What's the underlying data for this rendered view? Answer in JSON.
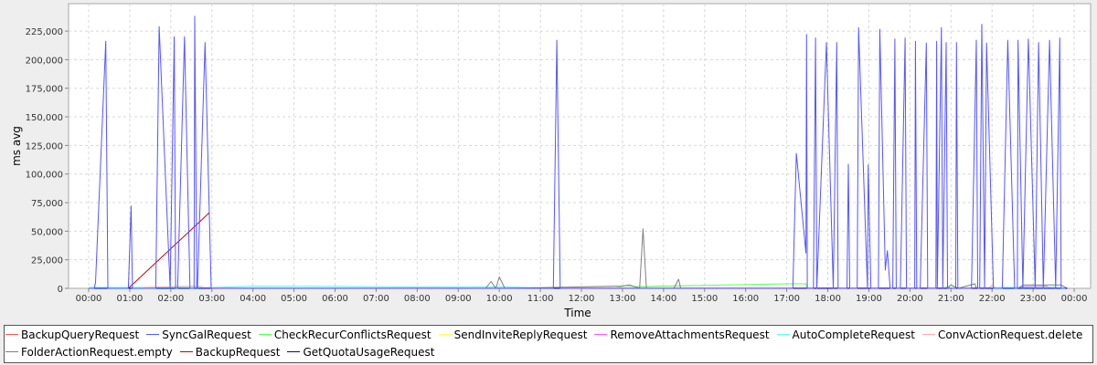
{
  "chart_data": {
    "type": "line",
    "xlabel": "Time",
    "ylabel": "ms avg",
    "x_range_hours": [
      -0.49,
      24.4
    ],
    "ylim": [
      0,
      249000
    ],
    "grid": true,
    "legend": "bottom",
    "x_ticks": [
      "00:00",
      "01:00",
      "02:00",
      "03:00",
      "04:00",
      "05:00",
      "06:00",
      "07:00",
      "08:00",
      "09:00",
      "10:00",
      "11:00",
      "12:00",
      "13:00",
      "14:00",
      "15:00",
      "16:00",
      "17:00",
      "18:00",
      "19:00",
      "20:00",
      "21:00",
      "22:00",
      "23:00",
      "00:00"
    ],
    "y_ticks": [
      0,
      25000,
      50000,
      75000,
      100000,
      125000,
      150000,
      175000,
      200000,
      225000
    ],
    "y_tick_labels": [
      "0",
      "25,000",
      "50,000",
      "75,000",
      "100,000",
      "125,000",
      "150,000",
      "175,000",
      "200,000",
      "225,000"
    ],
    "series": [
      {
        "name": "BackupQueryRequest",
        "color": "#ff5555",
        "points": [
          [
            "00:00",
            0
          ],
          [
            "23:50",
            0
          ]
        ]
      },
      {
        "name": "SyncGalRequest",
        "color": "#5555ff",
        "points": [
          [
            "00:00",
            0
          ],
          [
            "00:08",
            0
          ],
          [
            "00:10",
            5000
          ],
          [
            "00:25",
            216000
          ],
          [
            "00:28",
            0
          ],
          [
            "00:58",
            0
          ],
          [
            "01:02",
            72000
          ],
          [
            "01:04",
            0
          ],
          [
            "01:38",
            0
          ],
          [
            "01:43",
            229000
          ],
          [
            "01:59",
            0
          ],
          [
            "02:05",
            220000
          ],
          [
            "02:07",
            0
          ],
          [
            "02:10",
            0
          ],
          [
            "02:20",
            220000
          ],
          [
            "02:28",
            0
          ],
          [
            "02:34",
            0
          ],
          [
            "02:35",
            238000
          ],
          [
            "02:38",
            0
          ],
          [
            "02:39",
            0
          ],
          [
            "02:50",
            215000
          ],
          [
            "02:59",
            0
          ],
          [
            "11:19",
            0
          ],
          [
            "11:24",
            217000
          ],
          [
            "11:29",
            0
          ],
          [
            "17:09",
            0
          ],
          [
            "17:14",
            118000
          ],
          [
            "17:28",
            31000
          ],
          [
            "17:29",
            222000
          ],
          [
            "17:30",
            0
          ],
          [
            "17:39",
            0
          ],
          [
            "17:42",
            219000
          ],
          [
            "17:44",
            0
          ],
          [
            "17:58",
            215000
          ],
          [
            "18:08",
            0
          ],
          [
            "18:13",
            215000
          ],
          [
            "18:15",
            0
          ],
          [
            "18:28",
            0
          ],
          [
            "18:30",
            108500
          ],
          [
            "18:32",
            0
          ],
          [
            "18:43",
            0
          ],
          [
            "18:45",
            228000
          ],
          [
            "18:58",
            0
          ],
          [
            "18:59",
            108000
          ],
          [
            "19:03",
            0
          ],
          [
            "19:14",
            0
          ],
          [
            "19:16",
            226600
          ],
          [
            "19:24",
            16000
          ],
          [
            "19:27",
            33000
          ],
          [
            "19:31",
            0
          ],
          [
            "19:35",
            0
          ],
          [
            "19:38",
            218000
          ],
          [
            "19:40",
            0
          ],
          [
            "19:46",
            0
          ],
          [
            "19:53",
            219000
          ],
          [
            "19:55",
            0
          ],
          [
            "20:07",
            0
          ],
          [
            "20:08",
            216000
          ],
          [
            "20:10",
            0
          ],
          [
            "20:15",
            0
          ],
          [
            "20:24",
            214600
          ],
          [
            "20:26",
            0
          ],
          [
            "20:38",
            0
          ],
          [
            "20:39",
            216000
          ],
          [
            "20:40",
            0
          ],
          [
            "20:46",
            228000
          ],
          [
            "20:48",
            0
          ],
          [
            "20:53",
            215000
          ],
          [
            "20:55",
            0
          ],
          [
            "21:07",
            0
          ],
          [
            "21:08",
            215000
          ],
          [
            "21:10",
            0
          ],
          [
            "21:30",
            0
          ],
          [
            "21:37",
            217000
          ],
          [
            "21:39",
            0
          ],
          [
            "21:42",
            0
          ],
          [
            "21:45",
            231000
          ],
          [
            "21:49",
            0
          ],
          [
            "21:52",
            214600
          ],
          [
            "22:02",
            0
          ],
          [
            "22:15",
            0
          ],
          [
            "22:23",
            217000
          ],
          [
            "22:33",
            0
          ],
          [
            "22:37",
            0
          ],
          [
            "22:38",
            217000
          ],
          [
            "22:45",
            0
          ],
          [
            "22:53",
            218000
          ],
          [
            "23:03",
            0
          ],
          [
            "23:08",
            215000
          ],
          [
            "23:15",
            0
          ],
          [
            "23:24",
            217000
          ],
          [
            "23:33",
            0
          ],
          [
            "23:39",
            219000
          ],
          [
            "23:41",
            0
          ],
          [
            "23:47",
            0
          ]
        ]
      },
      {
        "name": "CheckRecurConflictsRequest",
        "color": "#55ff55",
        "points": [
          [
            "12:50",
            500
          ],
          [
            "13:05",
            2500
          ],
          [
            "13:20",
            1500
          ],
          [
            "14:00",
            2000
          ],
          [
            "17:00",
            4000
          ],
          [
            "17:28",
            4000
          ],
          [
            "17:30",
            0
          ],
          [
            "23:40",
            0
          ]
        ]
      },
      {
        "name": "SendInviteReplyRequest",
        "color": "#ffff55",
        "points": [
          [
            "17:00",
            500
          ],
          [
            "23:45",
            500
          ]
        ]
      },
      {
        "name": "RemoveAttachmentsRequest",
        "color": "#ff55ff",
        "points": [
          [
            "22:40",
            1500
          ],
          [
            "23:20",
            1800
          ],
          [
            "23:25",
            0
          ]
        ]
      },
      {
        "name": "AutoCompleteRequest",
        "color": "#55ffff",
        "points": [
          [
            "00:00",
            800
          ],
          [
            "03:00",
            800
          ],
          [
            "04:00",
            2000
          ],
          [
            "06:00",
            1800
          ],
          [
            "08:00",
            1200
          ],
          [
            "10:00",
            1500
          ],
          [
            "11:00",
            500
          ],
          [
            "20:50",
            500
          ],
          [
            "21:00",
            2500
          ],
          [
            "21:10",
            500
          ],
          [
            "23:30",
            1000
          ],
          [
            "23:50",
            0
          ]
        ]
      },
      {
        "name": "ConvActionRequest.delete",
        "color": "#ffaaaa",
        "points": [
          [
            "01:20",
            800
          ],
          [
            "02:00",
            1500
          ],
          [
            "02:40",
            2000
          ],
          [
            "02:50",
            500
          ],
          [
            "21:55",
            500
          ],
          [
            "22:00",
            2500
          ],
          [
            "22:05",
            500
          ]
        ]
      },
      {
        "name": "FolderActionRequest.empty",
        "color": "#808080",
        "points": [
          [
            "00:00",
            0
          ],
          [
            "09:40",
            0
          ],
          [
            "09:48",
            6000
          ],
          [
            "09:55",
            0
          ],
          [
            "10:00",
            10000
          ],
          [
            "10:08",
            0
          ],
          [
            "13:00",
            2000
          ],
          [
            "13:10",
            3000
          ],
          [
            "13:25",
            0
          ],
          [
            "13:30",
            52000
          ],
          [
            "13:35",
            0
          ],
          [
            "14:15",
            0
          ],
          [
            "14:22",
            8000
          ],
          [
            "14:25",
            0
          ],
          [
            "20:55",
            0
          ],
          [
            "21:00",
            3000
          ],
          [
            "21:10",
            0
          ],
          [
            "21:35",
            4000
          ],
          [
            "21:37",
            0
          ],
          [
            "22:40",
            0
          ],
          [
            "22:45",
            3000
          ],
          [
            "23:40",
            3000
          ],
          [
            "23:50",
            0
          ]
        ]
      },
      {
        "name": "BackupRequest",
        "color": "#cc0000",
        "points": [
          [
            "00:58",
            0
          ],
          [
            "02:56",
            66000
          ]
        ]
      },
      {
        "name": "GetQuotaUsageRequest",
        "color": "#0000cc",
        "points": [
          [
            "00:00",
            0
          ],
          [
            "23:50",
            0
          ]
        ]
      }
    ]
  }
}
